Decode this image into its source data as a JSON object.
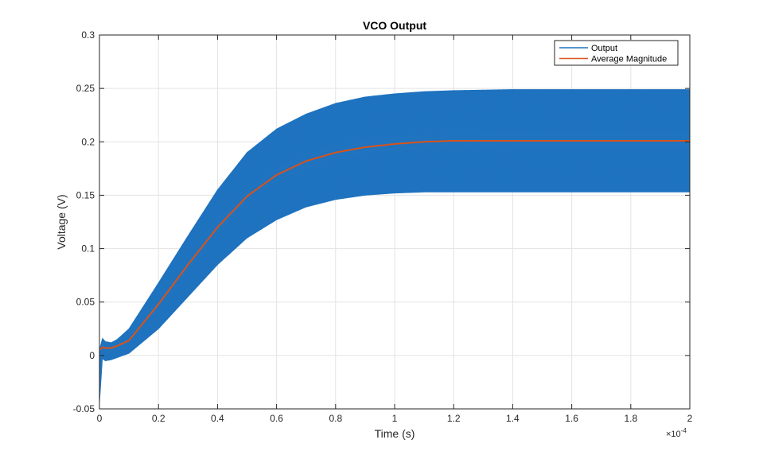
{
  "chart_data": {
    "type": "line",
    "title": "VCO Output",
    "xlabel": "Time (s)",
    "ylabel": "Voltage (V)",
    "x_exponent_label": "×10",
    "x_exponent_power": "-4",
    "xlim": [
      0,
      2
    ],
    "ylim": [
      -0.05,
      0.3
    ],
    "x_ticks": [
      0,
      0.2,
      0.4,
      0.6,
      0.8,
      1,
      1.2,
      1.4,
      1.6,
      1.8,
      2
    ],
    "x_tick_labels": [
      "0",
      "0.2",
      "0.4",
      "0.6",
      "0.8",
      "1",
      "1.2",
      "1.4",
      "1.6",
      "1.8",
      "2"
    ],
    "y_ticks": [
      -0.05,
      0,
      0.05,
      0.1,
      0.15,
      0.2,
      0.25,
      0.3
    ],
    "y_tick_labels": [
      "-0.05",
      "0",
      "0.05",
      "0.1",
      "0.15",
      "0.2",
      "0.25",
      "0.3"
    ],
    "grid": true,
    "legend_position": "top-right",
    "series": [
      {
        "name": "Output",
        "color": "#1f73bf",
        "style": "oscillating band",
        "x": [
          0,
          0.01,
          0.02,
          0.04,
          0.06,
          0.1,
          0.2,
          0.3,
          0.4,
          0.5,
          0.6,
          0.7,
          0.8,
          0.9,
          1.0,
          1.1,
          1.2,
          1.4,
          1.6,
          1.8,
          2.0
        ],
        "upper": [
          0.005,
          0.016,
          0.013,
          0.012,
          0.015,
          0.025,
          0.068,
          0.112,
          0.155,
          0.19,
          0.212,
          0.226,
          0.236,
          0.242,
          0.245,
          0.247,
          0.248,
          0.249,
          0.249,
          0.249,
          0.249
        ],
        "lower": [
          -0.045,
          -0.003,
          -0.005,
          -0.004,
          -0.002,
          0.002,
          0.025,
          0.055,
          0.085,
          0.11,
          0.127,
          0.139,
          0.146,
          0.15,
          0.152,
          0.153,
          0.153,
          0.153,
          0.153,
          0.153,
          0.153
        ]
      },
      {
        "name": "Average Magnitude",
        "color": "#d95319",
        "x": [
          0,
          0.01,
          0.02,
          0.04,
          0.06,
          0.1,
          0.2,
          0.3,
          0.4,
          0.5,
          0.6,
          0.7,
          0.8,
          0.9,
          1.0,
          1.1,
          1.2,
          1.4,
          1.6,
          1.8,
          2.0
        ],
        "values": [
          0.005,
          0.008,
          0.007,
          0.007,
          0.009,
          0.014,
          0.048,
          0.085,
          0.12,
          0.149,
          0.169,
          0.182,
          0.19,
          0.195,
          0.198,
          0.2,
          0.201,
          0.201,
          0.201,
          0.201,
          0.201
        ]
      }
    ]
  }
}
